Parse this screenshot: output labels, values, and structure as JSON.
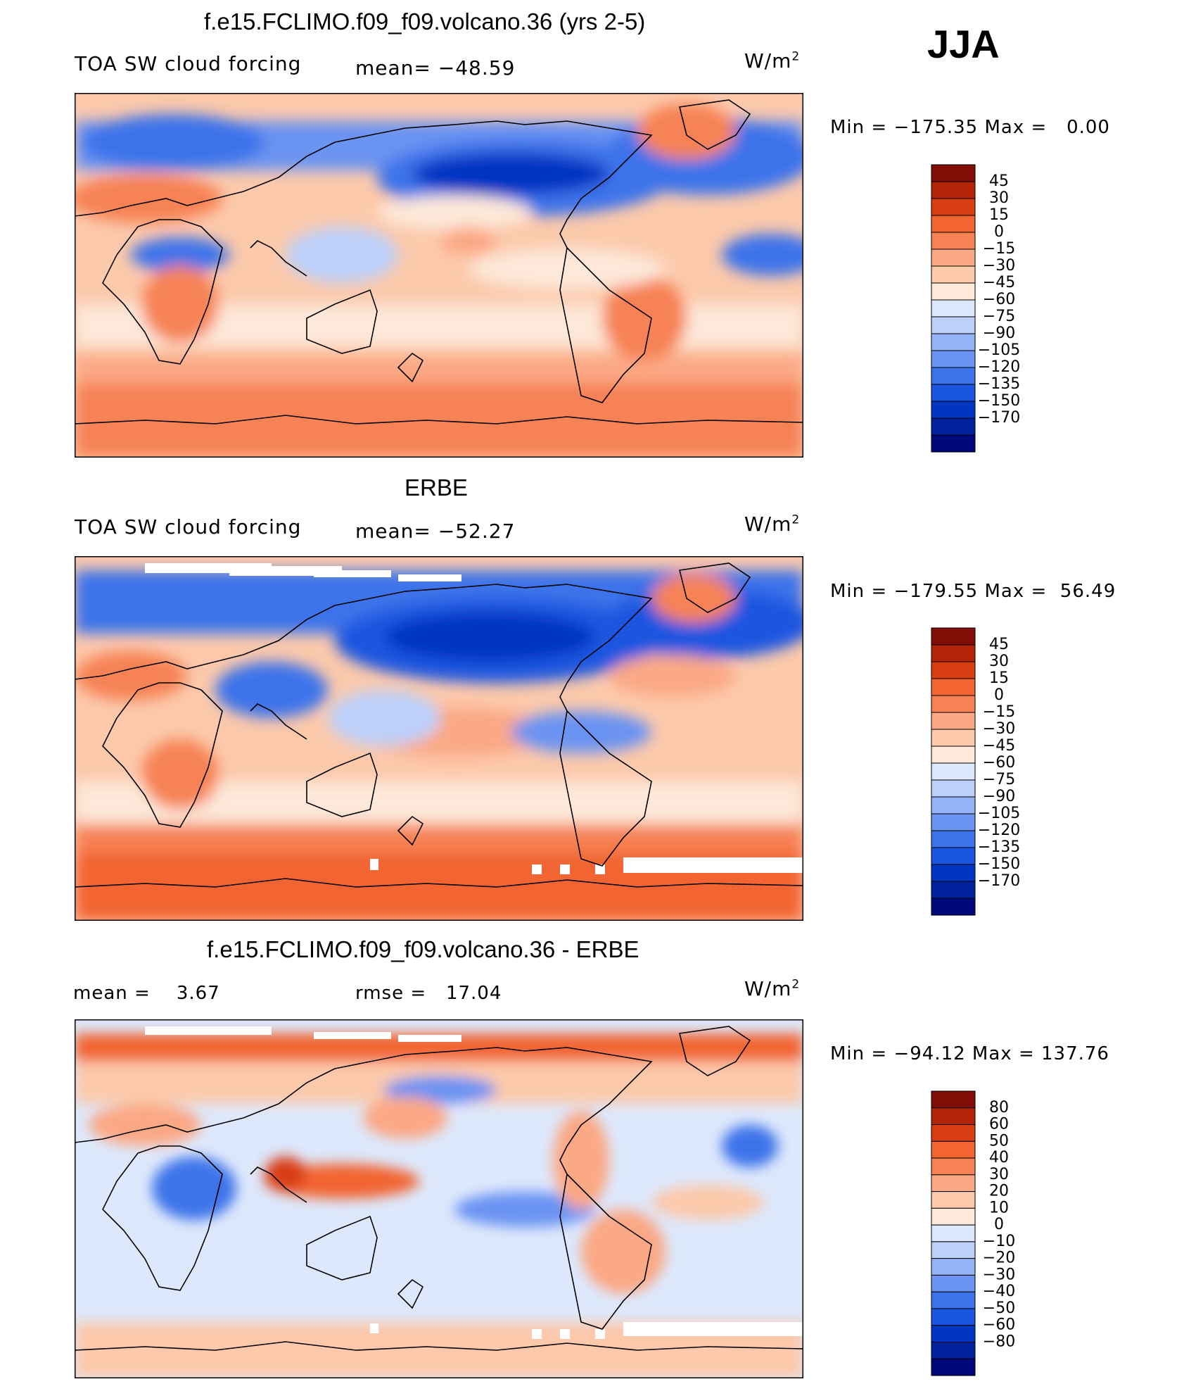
{
  "season": "JJA",
  "units_base": "W/m",
  "units_exp": "2",
  "colors": {
    "abs_scale": [
      "#00097a",
      "#00209c",
      "#0036c2",
      "#1a56e0",
      "#3d73ea",
      "#6a93f2",
      "#95b3f7",
      "#bcd0fa",
      "#dde8fc",
      "#fde8d9",
      "#fcc9ab",
      "#fba884",
      "#f68255",
      "#f26530",
      "#d93d12",
      "#b22408",
      "#820c06"
    ],
    "diff_scale": [
      "#00097a",
      "#00209c",
      "#0036c2",
      "#1a56e0",
      "#3d73ea",
      "#6a93f2",
      "#95b3f7",
      "#bcd0fa",
      "#dde8fc",
      "#fde8d9",
      "#fcc9ab",
      "#fba884",
      "#f68255",
      "#f26530",
      "#d93d12",
      "#b22408",
      "#820c06"
    ]
  },
  "panels": [
    {
      "title": "f.e15.FCLIMO.f09_f09.volcano.36 (yrs 2-5)",
      "left_label": "TOA SW cloud forcing",
      "center_label": "mean= −48.59",
      "minmax": "Min = −175.35 Max =   0.00",
      "legend_labels": [
        "45",
        "30",
        "15",
        "0",
        "−15",
        "−30",
        "−45",
        "−60",
        "−75",
        "−90",
        "−105",
        "−120",
        "−135",
        "−150",
        "−170"
      ]
    },
    {
      "title": "ERBE",
      "left_label": "TOA SW cloud forcing",
      "center_label": "mean= −52.27",
      "minmax": "Min = −179.55 Max =  56.49",
      "legend_labels": [
        "45",
        "30",
        "15",
        "0",
        "−15",
        "−30",
        "−45",
        "−60",
        "−75",
        "−90",
        "−105",
        "−120",
        "−135",
        "−150",
        "−170"
      ]
    },
    {
      "title": "f.e15.FCLIMO.f09_f09.volcano.36 - ERBE",
      "left_label": "mean =    3.67",
      "center_label": "rmse =   17.04",
      "minmax": "Min = −94.12 Max = 137.76",
      "legend_labels": [
        "80",
        "60",
        "50",
        "40",
        "30",
        "20",
        "10",
        "0",
        "−10",
        "−20",
        "−30",
        "−40",
        "−50",
        "−60",
        "−80"
      ]
    }
  ],
  "chart_data": [
    {
      "type": "heatmap",
      "title": "f.e15.FCLIMO.f09_f09.volcano.36 (yrs 2-5)",
      "variable": "TOA SW cloud forcing",
      "units": "W/m2",
      "mean": -48.59,
      "min": -175.35,
      "max": 0.0,
      "contour_levels": [
        -170,
        -150,
        -135,
        -120,
        -105,
        -90,
        -75,
        -60,
        -45,
        -30,
        -15,
        0,
        15,
        30,
        45
      ]
    },
    {
      "type": "heatmap",
      "title": "ERBE",
      "variable": "TOA SW cloud forcing",
      "units": "W/m2",
      "mean": -52.27,
      "min": -179.55,
      "max": 56.49,
      "contour_levels": [
        -170,
        -150,
        -135,
        -120,
        -105,
        -90,
        -75,
        -60,
        -45,
        -30,
        -15,
        0,
        15,
        30,
        45
      ]
    },
    {
      "type": "heatmap",
      "title": "f.e15.FCLIMO.f09_f09.volcano.36 - ERBE",
      "units": "W/m2",
      "mean": 3.67,
      "rmse": 17.04,
      "min": -94.12,
      "max": 137.76,
      "contour_levels": [
        -80,
        -60,
        -50,
        -40,
        -30,
        -20,
        -10,
        0,
        10,
        20,
        30,
        40,
        50,
        60,
        80
      ]
    }
  ]
}
